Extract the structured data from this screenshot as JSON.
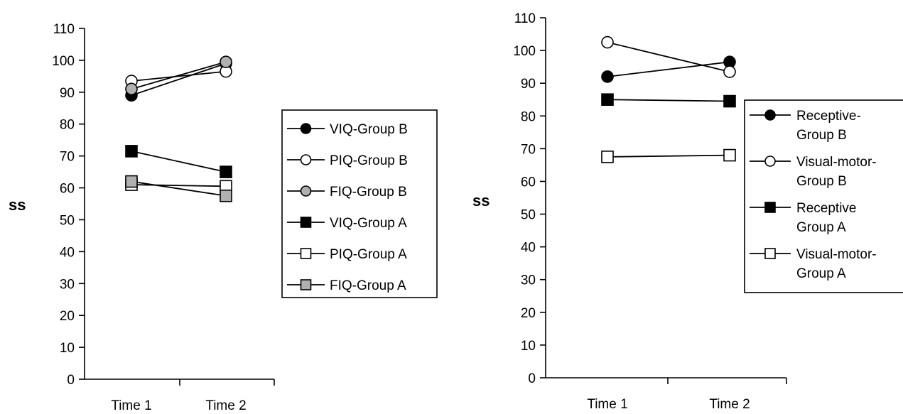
{
  "chart_data": [
    {
      "type": "line",
      "title": "",
      "xlabel": "",
      "ylabel": "ss",
      "categories": [
        "Time 1",
        "Time 2"
      ],
      "ylim": [
        0,
        110
      ],
      "yticks": [
        0,
        10,
        20,
        30,
        40,
        50,
        60,
        70,
        80,
        90,
        100,
        110
      ],
      "grid": false,
      "legend_position": "right",
      "series": [
        {
          "name": "VIQ-Group B",
          "values": [
            89,
            99
          ],
          "marker": "circle",
          "fill": "#000000"
        },
        {
          "name": "PIQ-Group B",
          "values": [
            93.5,
            96.5
          ],
          "marker": "circle",
          "fill": "#ffffff"
        },
        {
          "name": "FIQ-Group B",
          "values": [
            91,
            99.5
          ],
          "marker": "circle",
          "fill": "#b0b0b0"
        },
        {
          "name": "VIQ-Group A",
          "values": [
            71.5,
            65
          ],
          "marker": "square",
          "fill": "#000000"
        },
        {
          "name": "PIQ-Group A",
          "values": [
            61,
            60.5
          ],
          "marker": "square",
          "fill": "#ffffff"
        },
        {
          "name": "FIQ-Group A",
          "values": [
            62,
            57.5
          ],
          "marker": "square",
          "fill": "#b0b0b0"
        }
      ]
    },
    {
      "type": "line",
      "title": "",
      "xlabel": "",
      "ylabel": "ss",
      "categories": [
        "Time 1",
        "Time 2"
      ],
      "ylim": [
        0,
        110
      ],
      "yticks": [
        0,
        10,
        20,
        30,
        40,
        50,
        60,
        70,
        80,
        90,
        100,
        110
      ],
      "grid": false,
      "legend_position": "right",
      "series": [
        {
          "name": "Receptive-\nGroup B",
          "values": [
            92,
            96.5
          ],
          "marker": "circle",
          "fill": "#000000"
        },
        {
          "name": "Visual-motor-\nGroup B",
          "values": [
            102.5,
            93.5
          ],
          "marker": "circle",
          "fill": "#ffffff"
        },
        {
          "name": "Receptive\nGroup A",
          "values": [
            85,
            84.5
          ],
          "marker": "square",
          "fill": "#000000"
        },
        {
          "name": "Visual-motor-\nGroup A",
          "values": [
            67.5,
            68
          ],
          "marker": "square",
          "fill": "#ffffff"
        }
      ]
    }
  ]
}
